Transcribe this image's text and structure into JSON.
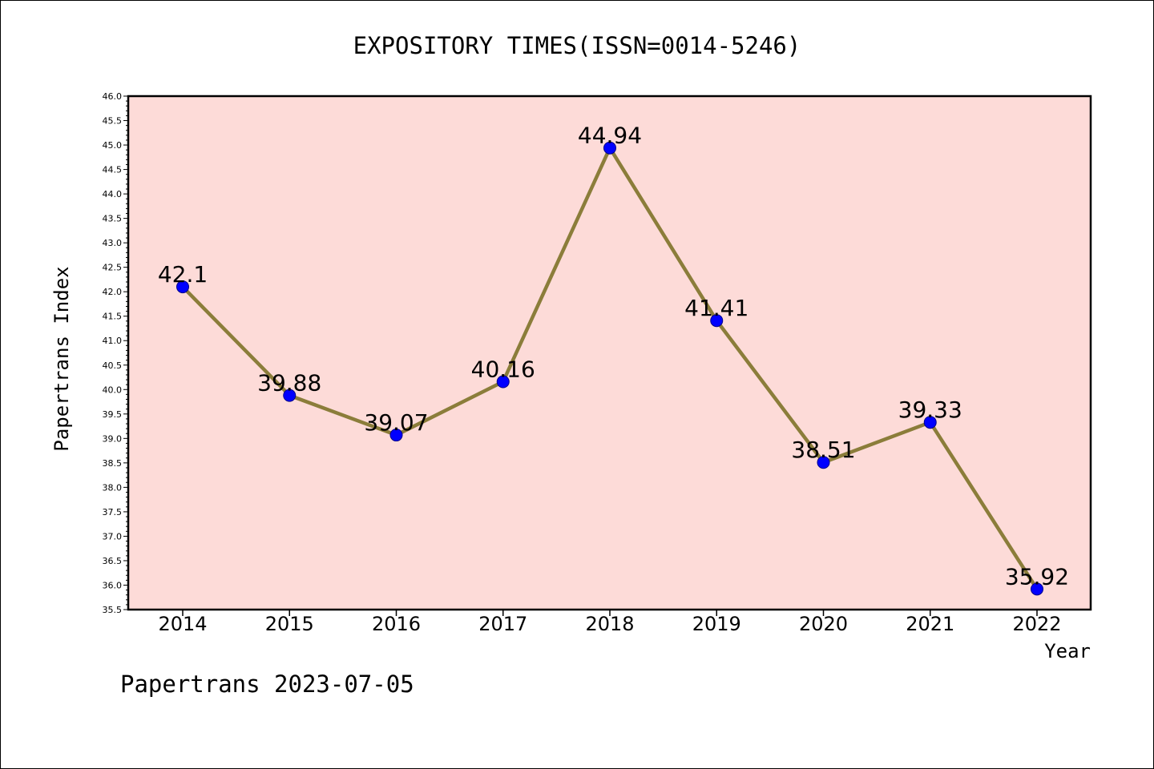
{
  "chart_data": {
    "type": "line",
    "title": "EXPOSITORY TIMES(ISSN=0014-5246)",
    "xlabel": "Year",
    "ylabel": "Papertrans Index",
    "categories": [
      "2014",
      "2015",
      "2016",
      "2017",
      "2018",
      "2019",
      "2020",
      "2021",
      "2022"
    ],
    "values": [
      42.1,
      39.88,
      39.07,
      40.16,
      44.94,
      41.41,
      38.51,
      39.33,
      35.92
    ],
    "value_labels": [
      "42.1",
      "39.88",
      "39.07",
      "40.16",
      "44.94",
      "41.41",
      "38.51",
      "39.33",
      "35.92"
    ],
    "ylim": [
      35.5,
      46.0
    ],
    "yticks": [
      "35.5",
      "36.0",
      "36.5",
      "37.0",
      "37.5",
      "38.0",
      "38.5",
      "39.0",
      "39.5",
      "40.0",
      "40.5",
      "41.0",
      "41.5",
      "42.0",
      "42.5",
      "43.0",
      "43.5",
      "44.0",
      "44.5",
      "45.0",
      "45.5",
      "46.0"
    ],
    "grid": false,
    "legend": "none",
    "colors": {
      "plot_background": "#fddbd8",
      "line": "#8b7d3a",
      "marker": "#0000ff",
      "marker_edge": "#00008b"
    }
  },
  "footer": {
    "text": "Papertrans 2023-07-05"
  }
}
